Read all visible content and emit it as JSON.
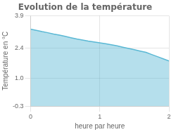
{
  "chart_data": {
    "type": "area",
    "title": "Evolution de la température",
    "x_label": "heure par heure",
    "y_label": "Température en °C",
    "x": [
      0.0,
      0.083,
      0.167,
      0.25,
      0.333,
      0.417,
      0.5,
      0.583,
      0.667,
      0.75,
      0.833,
      0.917,
      1.0,
      1.083,
      1.167,
      1.25,
      1.333,
      1.417,
      1.5,
      1.583,
      1.667,
      1.75,
      1.833,
      1.917,
      2.0
    ],
    "values": [
      3.28,
      3.22,
      3.16,
      3.11,
      3.05,
      3.0,
      2.94,
      2.88,
      2.82,
      2.77,
      2.72,
      2.68,
      2.64,
      2.6,
      2.55,
      2.5,
      2.44,
      2.38,
      2.32,
      2.26,
      2.2,
      2.1,
      2.0,
      1.9,
      1.8
    ],
    "color": "#5ab8d4",
    "xlim": [
      0,
      2
    ],
    "xticks": [
      0,
      1,
      2
    ],
    "ylim": [
      -0.3,
      3.9
    ],
    "yticks": [
      -0.3,
      {
        "value": 1.0,
        "label": "1.0"
      },
      2.4,
      3.9
    ],
    "grid": true
  }
}
